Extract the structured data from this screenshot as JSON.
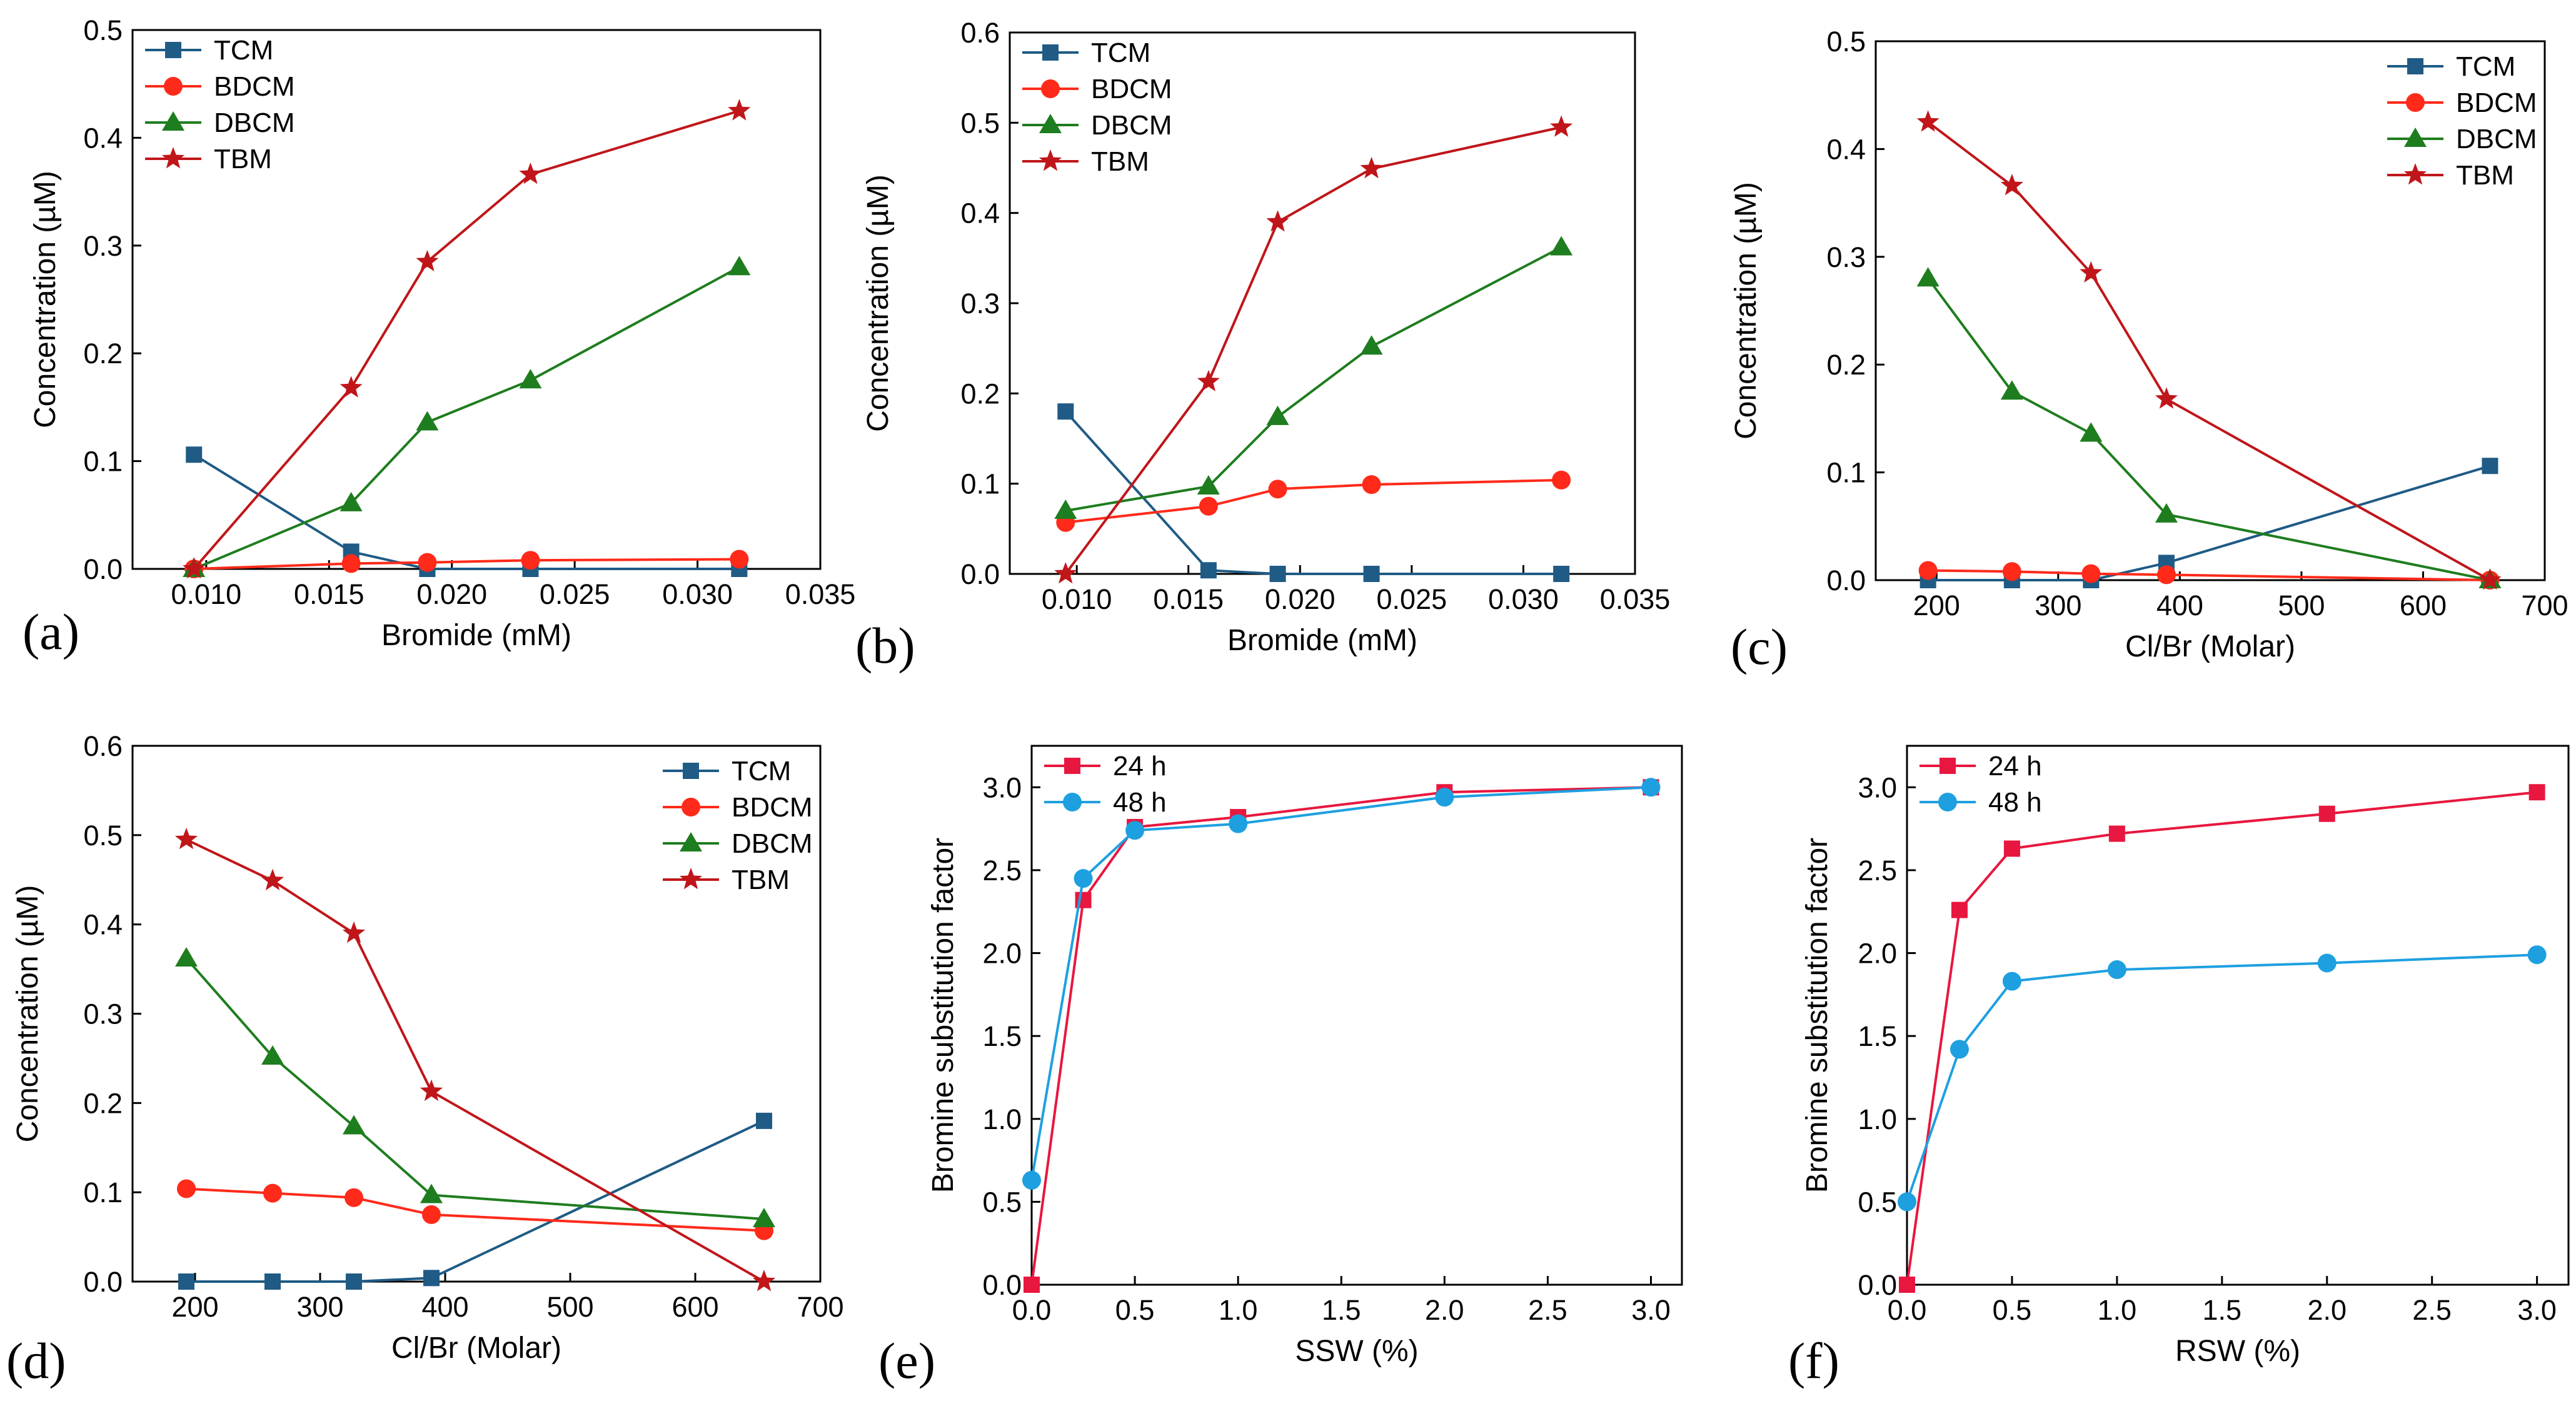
{
  "chart_data": [
    {
      "id": "a",
      "type": "line",
      "panel_label": "(a)",
      "xlabel": "Bromide (mM)",
      "ylabel": "Concentration (µM)",
      "xlim": [
        0.007,
        0.035
      ],
      "ylim": [
        0,
        0.5
      ],
      "xticks": [
        0.01,
        0.015,
        0.02,
        0.025,
        0.03,
        0.035
      ],
      "xtick_labels": [
        "0.010",
        "0.015",
        "0.020",
        "0.025",
        "0.030",
        "0.035"
      ],
      "yticks": [
        0,
        0.1,
        0.2,
        0.3,
        0.4,
        0.5
      ],
      "ytick_labels": [
        "0.0",
        "0.1",
        "0.2",
        "0.3",
        "0.4",
        "0.5"
      ],
      "legend_position": "top-left",
      "x": [
        0.0095,
        0.0159,
        0.019,
        0.0232,
        0.0317
      ],
      "series": [
        {
          "name": "TCM",
          "color": "#1f5b85",
          "marker": "square",
          "values": [
            0.106,
            0.016,
            0.0,
            0.0,
            0.0
          ]
        },
        {
          "name": "BDCM",
          "color": "#ff2a1a",
          "marker": "circle",
          "values": [
            0.0,
            0.005,
            0.006,
            0.008,
            0.009
          ]
        },
        {
          "name": "DBCM",
          "color": "#1e7d1e",
          "marker": "triangle",
          "values": [
            0.0,
            0.061,
            0.136,
            0.175,
            0.28
          ]
        },
        {
          "name": "TBM",
          "color": "#c0161a",
          "marker": "star",
          "values": [
            0.0,
            0.168,
            0.285,
            0.366,
            0.425
          ]
        }
      ]
    },
    {
      "id": "b",
      "type": "line",
      "panel_label": "(b)",
      "xlabel": "Bromide (mM)",
      "ylabel": "Concentration (µM)",
      "xlim": [
        0.007,
        0.035
      ],
      "ylim": [
        0,
        0.6
      ],
      "xticks": [
        0.01,
        0.015,
        0.02,
        0.025,
        0.03,
        0.035
      ],
      "xtick_labels": [
        "0.010",
        "0.015",
        "0.020",
        "0.025",
        "0.030",
        "0.035"
      ],
      "yticks": [
        0,
        0.1,
        0.2,
        0.3,
        0.4,
        0.5,
        0.6
      ],
      "ytick_labels": [
        "0.0",
        "0.1",
        "0.2",
        "0.3",
        "0.4",
        "0.5",
        "0.6"
      ],
      "legend_position": "top-left",
      "x": [
        0.0095,
        0.0159,
        0.019,
        0.0232,
        0.0317
      ],
      "series": [
        {
          "name": "TCM",
          "color": "#1f5b85",
          "marker": "square",
          "values": [
            0.18,
            0.004,
            0.0,
            0.0,
            0.0
          ]
        },
        {
          "name": "BDCM",
          "color": "#ff2a1a",
          "marker": "circle",
          "values": [
            0.057,
            0.075,
            0.094,
            0.099,
            0.104
          ]
        },
        {
          "name": "DBCM",
          "color": "#1e7d1e",
          "marker": "triangle",
          "values": [
            0.07,
            0.097,
            0.174,
            0.252,
            0.362
          ]
        },
        {
          "name": "TBM",
          "color": "#c0161a",
          "marker": "star",
          "values": [
            0.0,
            0.213,
            0.39,
            0.449,
            0.495
          ]
        }
      ]
    },
    {
      "id": "c",
      "type": "line",
      "panel_label": "(c)",
      "xlabel": "Cl/Br (Molar)",
      "ylabel": "Concentration (µM)",
      "xlim": [
        150,
        700
      ],
      "ylim": [
        0,
        0.5
      ],
      "xticks": [
        200,
        300,
        400,
        500,
        600,
        700
      ],
      "xtick_labels": [
        "200",
        "300",
        "400",
        "500",
        "600",
        "700"
      ],
      "yticks": [
        0,
        0.1,
        0.2,
        0.3,
        0.4,
        0.5
      ],
      "ytick_labels": [
        "0.0",
        "0.1",
        "0.2",
        "0.3",
        "0.4",
        "0.5"
      ],
      "legend_position": "top-right",
      "x": [
        193,
        262,
        327,
        389,
        655
      ],
      "series": [
        {
          "name": "TCM",
          "color": "#1f5b85",
          "marker": "square",
          "values": [
            0.0,
            0.0,
            0.0,
            0.016,
            0.106
          ]
        },
        {
          "name": "BDCM",
          "color": "#ff2a1a",
          "marker": "circle",
          "values": [
            0.009,
            0.008,
            0.006,
            0.005,
            0.0
          ]
        },
        {
          "name": "DBCM",
          "color": "#1e7d1e",
          "marker": "triangle",
          "values": [
            0.28,
            0.175,
            0.136,
            0.061,
            0.0
          ]
        },
        {
          "name": "TBM",
          "color": "#c0161a",
          "marker": "star",
          "values": [
            0.425,
            0.366,
            0.285,
            0.168,
            0.0
          ]
        }
      ]
    },
    {
      "id": "d",
      "type": "line",
      "panel_label": "(d)",
      "xlabel": "Cl/Br (Molar)",
      "ylabel": "Concentration (µM)",
      "xlim": [
        150,
        700
      ],
      "ylim": [
        0,
        0.6
      ],
      "xticks": [
        200,
        300,
        400,
        500,
        600,
        700
      ],
      "xtick_labels": [
        "200",
        "300",
        "400",
        "500",
        "600",
        "700"
      ],
      "yticks": [
        0,
        0.1,
        0.2,
        0.3,
        0.4,
        0.5,
        0.6
      ],
      "ytick_labels": [
        "0.0",
        "0.1",
        "0.2",
        "0.3",
        "0.4",
        "0.5",
        "0.6"
      ],
      "legend_position": "top-right",
      "x": [
        193,
        262,
        327,
        389,
        655
      ],
      "series": [
        {
          "name": "TCM",
          "color": "#1f5b85",
          "marker": "square",
          "values": [
            0.0,
            0.0,
            0.0,
            0.004,
            0.18
          ]
        },
        {
          "name": "BDCM",
          "color": "#ff2a1a",
          "marker": "circle",
          "values": [
            0.104,
            0.099,
            0.094,
            0.075,
            0.057
          ]
        },
        {
          "name": "DBCM",
          "color": "#1e7d1e",
          "marker": "triangle",
          "values": [
            0.362,
            0.252,
            0.174,
            0.097,
            0.07
          ]
        },
        {
          "name": "TBM",
          "color": "#c0161a",
          "marker": "star",
          "values": [
            0.495,
            0.449,
            0.39,
            0.213,
            0.0
          ]
        }
      ]
    },
    {
      "id": "e",
      "type": "line",
      "panel_label": "(e)",
      "xlabel": "SSW (%)",
      "ylabel": "Bromine substitution factor",
      "xlim": [
        0,
        3.15
      ],
      "ylim": [
        0,
        3.25
      ],
      "xticks": [
        0,
        0.5,
        1.0,
        1.5,
        2.0,
        2.5,
        3.0
      ],
      "xtick_labels": [
        "0.0",
        "0.5",
        "1.0",
        "1.5",
        "2.0",
        "2.5",
        "3.0"
      ],
      "yticks": [
        0,
        0.5,
        1.0,
        1.5,
        2.0,
        2.5,
        3.0
      ],
      "ytick_labels": [
        "0.0",
        "0.5",
        "1.0",
        "1.5",
        "2.0",
        "2.5",
        "3.0"
      ],
      "legend_position": "top-left",
      "x": [
        0,
        0.25,
        0.5,
        1.0,
        2.0,
        3.0
      ],
      "series": [
        {
          "name": "24 h",
          "color": "#e8173f",
          "marker": "square",
          "values": [
            0.0,
            2.32,
            2.76,
            2.82,
            2.97,
            3.0
          ]
        },
        {
          "name": "48 h",
          "color": "#1ea0e0",
          "marker": "circle",
          "values": [
            0.63,
            2.45,
            2.74,
            2.78,
            2.94,
            3.0
          ]
        }
      ]
    },
    {
      "id": "f",
      "type": "line",
      "panel_label": "(f)",
      "xlabel": "RSW (%)",
      "ylabel": "Bromine substitution factor",
      "xlim": [
        0,
        3.15
      ],
      "ylim": [
        0,
        3.25
      ],
      "xticks": [
        0,
        0.5,
        1.0,
        1.5,
        2.0,
        2.5,
        3.0
      ],
      "xtick_labels": [
        "0.0",
        "0.5",
        "1.0",
        "1.5",
        "2.0",
        "2.5",
        "3.0"
      ],
      "yticks": [
        0,
        0.5,
        1.0,
        1.5,
        2.0,
        2.5,
        3.0
      ],
      "ytick_labels": [
        "0.0",
        "0.5",
        "1.0",
        "1.5",
        "2.0",
        "2.5",
        "3.0"
      ],
      "legend_position": "top-left",
      "x": [
        0,
        0.25,
        0.5,
        1.0,
        2.0,
        3.0
      ],
      "series": [
        {
          "name": "24 h",
          "color": "#e8173f",
          "marker": "square",
          "values": [
            0.0,
            2.26,
            2.63,
            2.72,
            2.84,
            2.97
          ]
        },
        {
          "name": "48 h",
          "color": "#1ea0e0",
          "marker": "circle",
          "values": [
            0.5,
            1.42,
            1.83,
            1.9,
            1.94,
            1.99
          ]
        }
      ]
    }
  ]
}
